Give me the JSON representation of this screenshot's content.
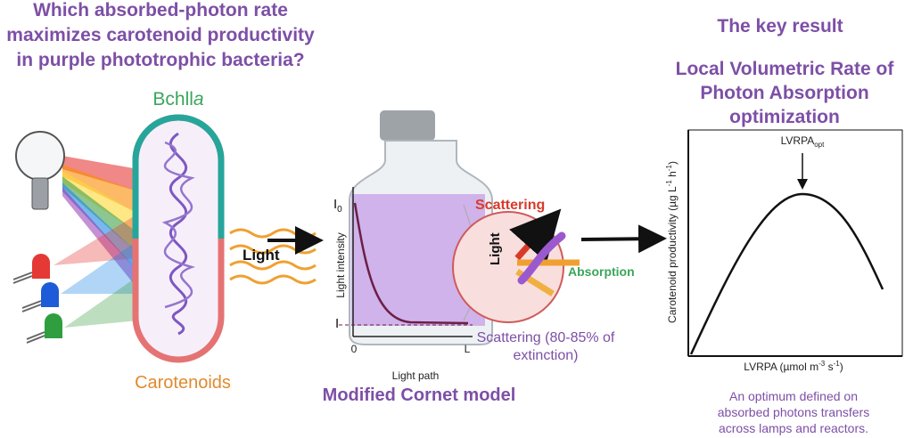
{
  "question": {
    "lines": [
      "Which absorbed-photon rate",
      "maximizes carotenoid productivity",
      "in purple phototrophic bacteria?"
    ]
  },
  "cell": {
    "pigment": "Bchll",
    "pigment_italic": "a",
    "carotenoids": "Carotenoids"
  },
  "light_label": "Light",
  "model": {
    "y_label": "Light intensity",
    "i0": "I",
    "i0_sub": "0",
    "i_end": "I",
    "x_start": "0",
    "x_end": "L",
    "x_label": "Light path",
    "title": "Modified Cornet model"
  },
  "inset": {
    "scattering": "Scattering",
    "light": "Light",
    "absorption": "Absorption",
    "note": [
      "Scattering (80-85% of",
      "extinction)"
    ]
  },
  "result": {
    "heading": "The key result",
    "title_lines": [
      "Local Volumetric Rate of",
      "Photon Absorption",
      "optimization"
    ],
    "plot": {
      "peak_label": "LVRPA",
      "peak_label_sub": "opt",
      "y_axis": [
        "Carotenoid  productivity  (µg  L",
        "-1",
        "  h",
        "-1",
        ")"
      ],
      "x_axis": [
        "LVRPA  (µmol  m",
        "-3",
        "  s",
        "-1",
        ")"
      ]
    },
    "caption": [
      "An optimum defined on",
      "absorbed photons transfers",
      "across lamps and reactors."
    ]
  }
}
